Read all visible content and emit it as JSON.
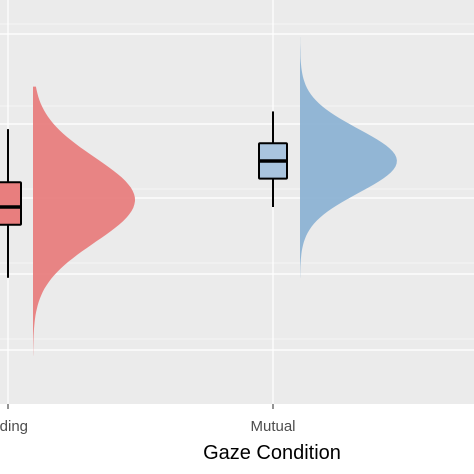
{
  "chart_data": {
    "type": "raincloud",
    "xlabel": "Gaze Condition",
    "categories": [
      "Avoiding",
      "Mutual"
    ],
    "visible_tick_labels": [
      "oiding",
      "Mutual"
    ],
    "colors": {
      "Avoiding": "#e87e7e",
      "Mutual": "#8db3d4",
      "panel": "#ebebeb",
      "grid": "#ffffff",
      "box_fill_avoiding": "#e87e7e",
      "box_fill_mutual": "#a9c4de"
    },
    "y_unit_note": "no y-axis labels visible; values in relative units 0-100",
    "ylim": [
      0,
      100
    ],
    "grid": true,
    "series": [
      {
        "category": "Avoiding",
        "box": {
          "min": 30,
          "q1": 45,
          "median": 50,
          "q3": 57,
          "max": 72
        },
        "density": {
          "y_min": 8,
          "y_max": 84,
          "mode": 52,
          "width": 1.0,
          "spread_low": 12,
          "spread_high": 12
        }
      },
      {
        "category": "Mutual",
        "box": {
          "min": 50,
          "q1": 58,
          "median": 63,
          "q3": 68,
          "max": 77
        },
        "density": {
          "y_min": 30,
          "y_max": 98,
          "mode": 63,
          "width": 0.95,
          "spread_low": 9,
          "spread_high": 9
        }
      }
    ]
  }
}
